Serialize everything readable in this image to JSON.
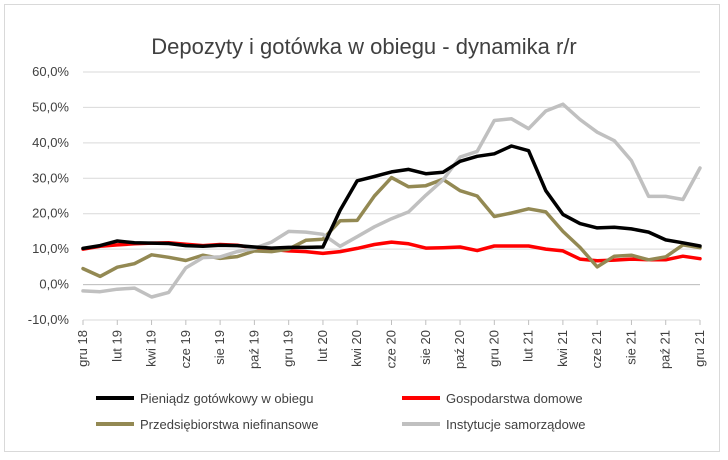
{
  "chart_data": {
    "type": "line",
    "title": "Depozyty i gotówka w obiegu - dynamika r/r",
    "xlabel": "",
    "ylabel": "",
    "ylim": [
      -10,
      60
    ],
    "yticks": [
      -10,
      0,
      10,
      20,
      30,
      40,
      50,
      60
    ],
    "ytick_labels": [
      "-10,0%",
      "0,0%",
      "10,0%",
      "20,0%",
      "30,0%",
      "40,0%",
      "50,0%",
      "60,0%"
    ],
    "grid": "horizontal",
    "legend_position": "bottom",
    "categories": [
      "gru 18",
      "sty 19",
      "lut 19",
      "mar 19",
      "kwi 19",
      "maj 19",
      "cze 19",
      "lip 19",
      "sie 19",
      "wrz 19",
      "paź 19",
      "lis 19",
      "gru 19",
      "sty 20",
      "lut 20",
      "mar 20",
      "kwi 20",
      "maj 20",
      "cze 20",
      "lip 20",
      "sie 20",
      "wrz 20",
      "paź 20",
      "lis 20",
      "gru 20",
      "sty 21",
      "lut 21",
      "mar 21",
      "kwi 21",
      "maj 21",
      "cze 21",
      "lip 21",
      "sie 21",
      "wrz 21",
      "paź 21",
      "lis 21",
      "gru 21"
    ],
    "tick_labels": [
      {
        "index": 0,
        "label": "gru 18"
      },
      {
        "index": 2,
        "label": "lut 19"
      },
      {
        "index": 4,
        "label": "kwi 19"
      },
      {
        "index": 6,
        "label": "cze 19"
      },
      {
        "index": 8,
        "label": "sie 19"
      },
      {
        "index": 10,
        "label": "paź 19"
      },
      {
        "index": 12,
        "label": "gru 19"
      },
      {
        "index": 14,
        "label": "lut 20"
      },
      {
        "index": 16,
        "label": "kwi 20"
      },
      {
        "index": 18,
        "label": "cze 20"
      },
      {
        "index": 20,
        "label": "sie 20"
      },
      {
        "index": 22,
        "label": "paź 20"
      },
      {
        "index": 24,
        "label": "gru 20"
      },
      {
        "index": 26,
        "label": "lut 21"
      },
      {
        "index": 28,
        "label": "kwi 21"
      },
      {
        "index": 30,
        "label": "cze 21"
      },
      {
        "index": 32,
        "label": "sie 21"
      },
      {
        "index": 34,
        "label": "paź 21"
      },
      {
        "index": 36,
        "label": "gru 21"
      }
    ],
    "series": [
      {
        "name": "Pieniądz gotówkowy w obiegu",
        "color": "#000000",
        "values": [
          10.2,
          11.0,
          12.3,
          11.8,
          11.7,
          11.6,
          11.0,
          10.8,
          11.1,
          11.0,
          10.6,
          10.3,
          10.5,
          10.5,
          10.6,
          21.0,
          29.3,
          30.5,
          31.8,
          32.5,
          31.3,
          31.7,
          34.8,
          36.2,
          36.9,
          39.1,
          37.8,
          26.5,
          19.8,
          17.2,
          16.0,
          16.2,
          15.7,
          14.8,
          12.6,
          11.8,
          10.9
        ]
      },
      {
        "name": "Gospodarstwa domowe",
        "color": "#ff0000",
        "values": [
          10.0,
          10.8,
          11.2,
          11.5,
          11.7,
          11.8,
          11.4,
          11.0,
          11.3,
          11.1,
          10.3,
          9.9,
          9.5,
          9.3,
          8.8,
          9.3,
          10.2,
          11.3,
          12.0,
          11.5,
          10.3,
          10.4,
          10.6,
          9.6,
          10.9,
          10.9,
          10.9,
          10.0,
          9.5,
          7.2,
          6.7,
          6.9,
          7.2,
          7.0,
          7.0,
          8.0,
          7.3
        ]
      },
      {
        "name": "Przedsiębiorstwa niefinansowe",
        "color": "#938953",
        "values": [
          4.5,
          2.3,
          4.9,
          5.9,
          8.4,
          7.7,
          6.8,
          8.3,
          7.4,
          7.9,
          9.5,
          9.3,
          10.0,
          12.5,
          12.8,
          18.0,
          18.1,
          25.0,
          30.2,
          27.6,
          27.9,
          29.7,
          26.5,
          25.0,
          19.2,
          20.2,
          21.4,
          20.5,
          15.0,
          10.5,
          5.0,
          8.0,
          8.3,
          7.0,
          7.8,
          11.2,
          10.4
        ]
      },
      {
        "name": "Instytucje samorządowe",
        "color": "#c0c0c0",
        "values": [
          -1.8,
          -2.0,
          -1.3,
          -1.0,
          -3.5,
          -2.2,
          4.7,
          7.6,
          7.8,
          9.3,
          10.2,
          12.0,
          15.0,
          14.8,
          14.2,
          10.8,
          13.5,
          16.3,
          18.6,
          20.5,
          25.2,
          29.5,
          36.0,
          37.6,
          46.3,
          46.8,
          44.0,
          49.0,
          50.9,
          46.6,
          43.0,
          40.6,
          35.0,
          24.9,
          24.9,
          24.0,
          32.9
        ]
      }
    ]
  }
}
